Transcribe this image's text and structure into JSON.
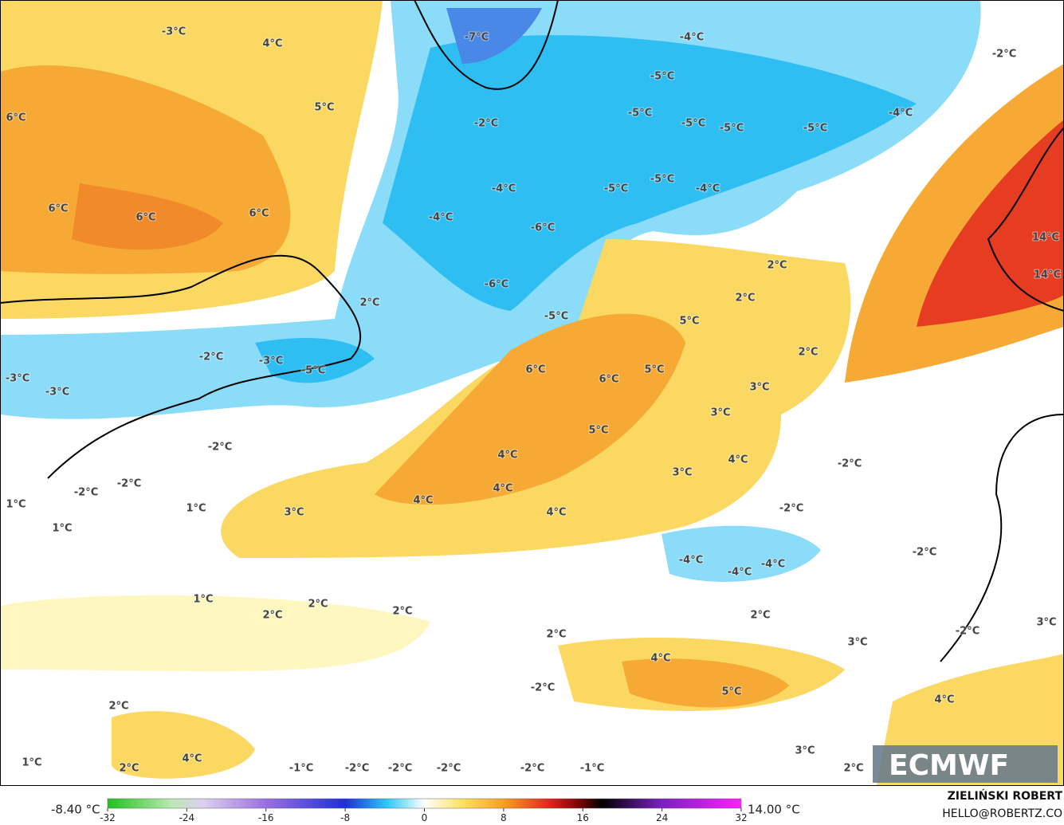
{
  "map": {
    "labels": [
      "-3°C",
      "4°C",
      "5°C",
      "6°C",
      "6°C",
      "6°C",
      "6°C",
      "-7°C",
      "-4°C",
      "-2°C",
      "-5°C",
      "-2°C",
      "-5°C",
      "-5°C",
      "-5°C",
      "-5°C",
      "-4°C",
      "-4°C",
      "-5°C",
      "-5°C",
      "-4°C",
      "-4°C",
      "-6°C",
      "-6°C",
      "-5°C",
      "2°C",
      "2°C",
      "2°C",
      "5°C",
      "-2°C",
      "-3°C",
      "-5°C",
      "-3°C",
      "-3°C",
      "6°C",
      "6°C",
      "5°C",
      "2°C",
      "3°C",
      "3°C",
      "5°C",
      "-2°C",
      "4°C",
      "4°C",
      "-2°C",
      "-2°C",
      "-2°C",
      "3°C",
      "4°C",
      "4°C",
      "4°C",
      "-2°C",
      "1°C",
      "1°C",
      "3°C",
      "1°C",
      "-2°C",
      "-4°C",
      "-4°C",
      "-4°C",
      "1°C",
      "2°C",
      "2°C",
      "2°C",
      "2°C",
      "2°C",
      "3°C",
      "-2°C",
      "4°C",
      "-2°C",
      "5°C",
      "2°C",
      "4°C",
      "3°C",
      "4°C",
      "3°C",
      "1°C",
      "2°C",
      "-1°C",
      "-2°C",
      "-2°C",
      "-2°C",
      "-2°C",
      "-1°C",
      "2°C",
      "14°C",
      "14°C"
    ]
  },
  "colorbar": {
    "min_label": "-8.40 °C",
    "max_label": "14.00 °C",
    "ticks": [
      -32,
      -24,
      -16,
      -8,
      0,
      8,
      16,
      24,
      32
    ]
  },
  "credits": {
    "author": "ZIELIŃSKI ROBERT",
    "contact": "HELLO@ROBERTZ.CO",
    "logo": "ECMWF"
  }
}
